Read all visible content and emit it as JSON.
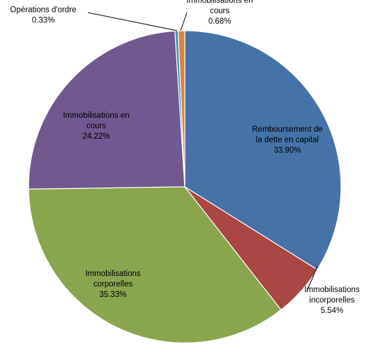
{
  "chart_data": {
    "type": "pie",
    "title": "",
    "slices": [
      {
        "name": "Remboursement de la dette en capital",
        "value": 33.9,
        "percent_label": "33.90%",
        "color": "#4572A7",
        "label_lines": [
          "Remboursement de",
          "la dette en capital"
        ]
      },
      {
        "name": "Immobilisations incorporelles",
        "value": 5.54,
        "percent_label": "5.54%",
        "color": "#AA4643",
        "label_lines": [
          "Immobilisations",
          "incorporelles"
        ]
      },
      {
        "name": "Immobilisations corporelles",
        "value": 35.33,
        "percent_label": "35.33%",
        "color": "#89A54E",
        "label_lines": [
          "Immobilisations",
          "corporelles"
        ]
      },
      {
        "name": "Immobilisations en cours",
        "value": 24.22,
        "percent_label": "24.22%",
        "color": "#71588F",
        "label_lines": [
          "Immobilisations en",
          "cours"
        ]
      },
      {
        "name": "Opérations d'ordre",
        "value": 0.33,
        "percent_label": "0.33%",
        "color": "#4198AF",
        "label_lines": [
          "Opérations d'ordre"
        ]
      },
      {
        "name": "Immobilisations en cours",
        "value": 0.68,
        "percent_label": "0.68%",
        "color": "#DB843D",
        "label_lines": [
          "Immobilisations en",
          "cours"
        ]
      }
    ],
    "legend": "none",
    "start_angle": "12 o'clock",
    "direction": "clockwise"
  }
}
